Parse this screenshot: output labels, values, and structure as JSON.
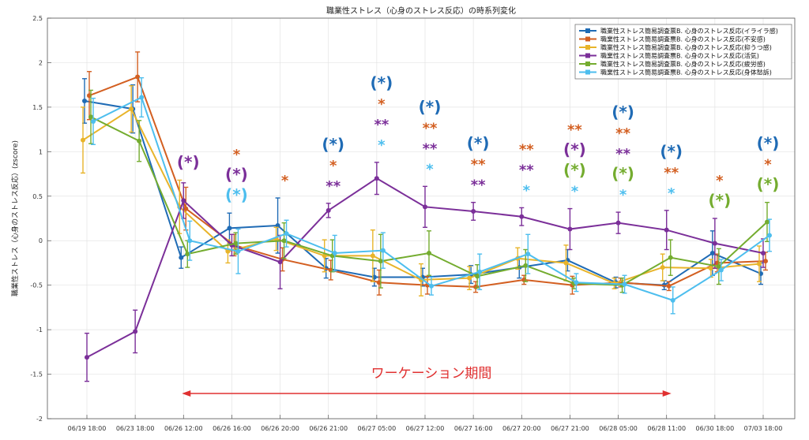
{
  "chart_data": {
    "type": "line",
    "title": "職業性ストレス（心身のストレス反応）の時系列変化",
    "ylabel": "職業性ストレス（心身のストレス反応）(zscore)",
    "xlabel": "",
    "ylim": [
      -2,
      2.5
    ],
    "yticks": [
      "-2",
      "-1.5",
      "-1",
      "-0.5",
      "0",
      "0.5",
      "1",
      "1.5",
      "2",
      "2.5"
    ],
    "grid": true,
    "legend_position": "top-right",
    "categories": [
      "06/19 18:00",
      "06/23 18:00",
      "06/26 12:00",
      "06/26 16:00",
      "06/26 20:00",
      "06/26 21:00",
      "06/27 05:00",
      "06/27 12:00",
      "06/27 16:00",
      "06/27 20:00",
      "06/27 21:00",
      "06/28 05:00",
      "06/28 11:00",
      "06/30 18:00",
      "07/03 18:00"
    ],
    "series": [
      {
        "name": "職業性ストレス簡易調査票B. 心身のストレス反応(イライラ感)",
        "color": "#1f6bb5",
        "offset": -3,
        "values": [
          1.57,
          1.48,
          -0.19,
          0.14,
          0.17,
          -0.31,
          -0.41,
          -0.41,
          -0.38,
          -0.3,
          -0.22,
          -0.47,
          -0.5,
          -0.14,
          -0.37
        ],
        "errors": [
          0.25,
          0.27,
          0.12,
          0.17,
          0.31,
          0.11,
          0.1,
          0.1,
          0.1,
          0.12,
          0.12,
          0.06,
          0.05,
          0.25,
          0.12
        ]
      },
      {
        "name": "職業性ストレス簡易調査票B. 心身のストレス反応(不安感)",
        "color": "#d35f21",
        "offset": 3,
        "values": [
          1.63,
          1.84,
          0.36,
          -0.05,
          -0.21,
          -0.33,
          -0.47,
          -0.5,
          -0.52,
          -0.44,
          -0.5,
          -0.47,
          -0.51,
          -0.25,
          -0.23
        ],
        "errors": [
          0.27,
          0.28,
          0.24,
          0.12,
          0.13,
          0.11,
          0.14,
          0.1,
          0.06,
          0.05,
          0.1,
          0.05,
          0.05,
          0.1,
          0.1
        ]
      },
      {
        "name": "職業性ストレス簡易調査票B. 心身のストレス反応(抑うつ感)",
        "color": "#e8b42a",
        "offset": -5,
        "values": [
          1.13,
          1.48,
          0.38,
          -0.12,
          0.02,
          -0.17,
          -0.17,
          -0.44,
          -0.42,
          -0.2,
          -0.25,
          -0.48,
          -0.3,
          -0.31,
          -0.26
        ],
        "errors": [
          0.37,
          0.26,
          0.3,
          0.13,
          0.13,
          0.18,
          0.29,
          0.18,
          0.13,
          0.12,
          0.2,
          0.06,
          0.15,
          0.1,
          0.2
        ]
      },
      {
        "name": "職業性ストレス簡易調査票B. 心身のストレス反応(活気)",
        "color": "#7b2f99",
        "offset": 0,
        "values": [
          -1.31,
          -1.02,
          0.45,
          -0.05,
          -0.24,
          0.34,
          0.7,
          0.38,
          0.33,
          0.27,
          0.13,
          0.2,
          0.12,
          -0.03,
          -0.14
        ],
        "errors": [
          0.27,
          0.24,
          0.2,
          0.12,
          0.3,
          0.08,
          0.18,
          0.23,
          0.1,
          0.1,
          0.23,
          0.12,
          0.22,
          0.28,
          0.16
        ]
      },
      {
        "name": "職業性ストレス簡易調査票B. 心身のストレス反応(疲労感)",
        "color": "#74ac2f",
        "offset": 5,
        "values": [
          1.39,
          1.12,
          -0.15,
          -0.03,
          0.0,
          -0.17,
          -0.23,
          -0.14,
          -0.4,
          -0.28,
          -0.48,
          -0.5,
          -0.19,
          -0.29,
          0.21
        ],
        "errors": [
          0.3,
          0.23,
          0.15,
          0.12,
          0.2,
          0.18,
          0.3,
          0.25,
          0.13,
          0.18,
          0.06,
          0.08,
          0.2,
          0.2,
          0.22
        ]
      },
      {
        "name": "職業性ストレス簡易調査票B. 心身のストレス反応(身体愁訴)",
        "color": "#4dbeee",
        "offset": 8,
        "values": [
          1.34,
          1.61,
          0.0,
          -0.12,
          0.08,
          -0.14,
          -0.11,
          -0.51,
          -0.35,
          -0.15,
          -0.47,
          -0.49,
          -0.67,
          -0.33,
          0.06
        ],
        "errors": [
          0.26,
          0.22,
          0.22,
          0.25,
          0.15,
          0.2,
          0.2,
          0.1,
          0.2,
          0.22,
          0.1,
          0.1,
          0.15,
          0.12,
          0.18
        ]
      }
    ],
    "annotations": [
      {
        "category_index": 2,
        "marks": [
          {
            "text": "(*)",
            "color": "#7b2f99"
          }
        ]
      },
      {
        "category_index": 3,
        "marks": [
          {
            "text": "*",
            "color": "#d35f21"
          },
          {
            "text": "(*)",
            "color": "#7b2f99"
          },
          {
            "text": "(*)",
            "color": "#4dbeee"
          }
        ]
      },
      {
        "category_index": 4,
        "marks": [
          {
            "text": "*",
            "color": "#d35f21"
          }
        ]
      },
      {
        "category_index": 5,
        "marks": [
          {
            "text": "(*)",
            "color": "#1f6bb5"
          },
          {
            "text": "*",
            "color": "#d35f21"
          },
          {
            "text": "**",
            "color": "#7b2f99"
          }
        ]
      },
      {
        "category_index": 6,
        "marks": [
          {
            "text": "(*)",
            "color": "#1f6bb5"
          },
          {
            "text": "*",
            "color": "#d35f21"
          },
          {
            "text": "**",
            "color": "#7b2f99"
          },
          {
            "text": "*",
            "color": "#4dbeee"
          }
        ]
      },
      {
        "category_index": 7,
        "marks": [
          {
            "text": "(*)",
            "color": "#1f6bb5"
          },
          {
            "text": "**",
            "color": "#d35f21"
          },
          {
            "text": "**",
            "color": "#7b2f99"
          },
          {
            "text": "*",
            "color": "#4dbeee"
          }
        ]
      },
      {
        "category_index": 8,
        "marks": [
          {
            "text": "(*)",
            "color": "#1f6bb5"
          },
          {
            "text": "**",
            "color": "#d35f21"
          },
          {
            "text": "**",
            "color": "#7b2f99"
          }
        ]
      },
      {
        "category_index": 9,
        "marks": [
          {
            "text": "**",
            "color": "#d35f21"
          },
          {
            "text": "**",
            "color": "#7b2f99"
          },
          {
            "text": "*",
            "color": "#4dbeee"
          }
        ]
      },
      {
        "category_index": 10,
        "marks": [
          {
            "text": "**",
            "color": "#d35f21"
          },
          {
            "text": "(*)",
            "color": "#7b2f99"
          },
          {
            "text": "(*)",
            "color": "#74ac2f"
          },
          {
            "text": "*",
            "color": "#4dbeee"
          }
        ]
      },
      {
        "category_index": 11,
        "marks": [
          {
            "text": "(*)",
            "color": "#1f6bb5"
          },
          {
            "text": "**",
            "color": "#d35f21"
          },
          {
            "text": "**",
            "color": "#7b2f99"
          },
          {
            "text": "(*)",
            "color": "#74ac2f"
          },
          {
            "text": "*",
            "color": "#4dbeee"
          }
        ]
      },
      {
        "category_index": 12,
        "marks": [
          {
            "text": "(*)",
            "color": "#1f6bb5"
          },
          {
            "text": "**",
            "color": "#d35f21"
          },
          {
            "text": "*",
            "color": "#4dbeee"
          }
        ]
      },
      {
        "category_index": 13,
        "marks": [
          {
            "text": "*",
            "color": "#d35f21"
          },
          {
            "text": "(*)",
            "color": "#74ac2f"
          }
        ]
      },
      {
        "category_index": 14,
        "marks": [
          {
            "text": "(*)",
            "color": "#1f6bb5"
          },
          {
            "text": "*",
            "color": "#d35f21"
          },
          {
            "text": "(*)",
            "color": "#74ac2f"
          }
        ]
      }
    ],
    "period": {
      "label": "ワーケーション期間",
      "start_index": 2,
      "end_index": 12,
      "color": "#e03030"
    }
  }
}
